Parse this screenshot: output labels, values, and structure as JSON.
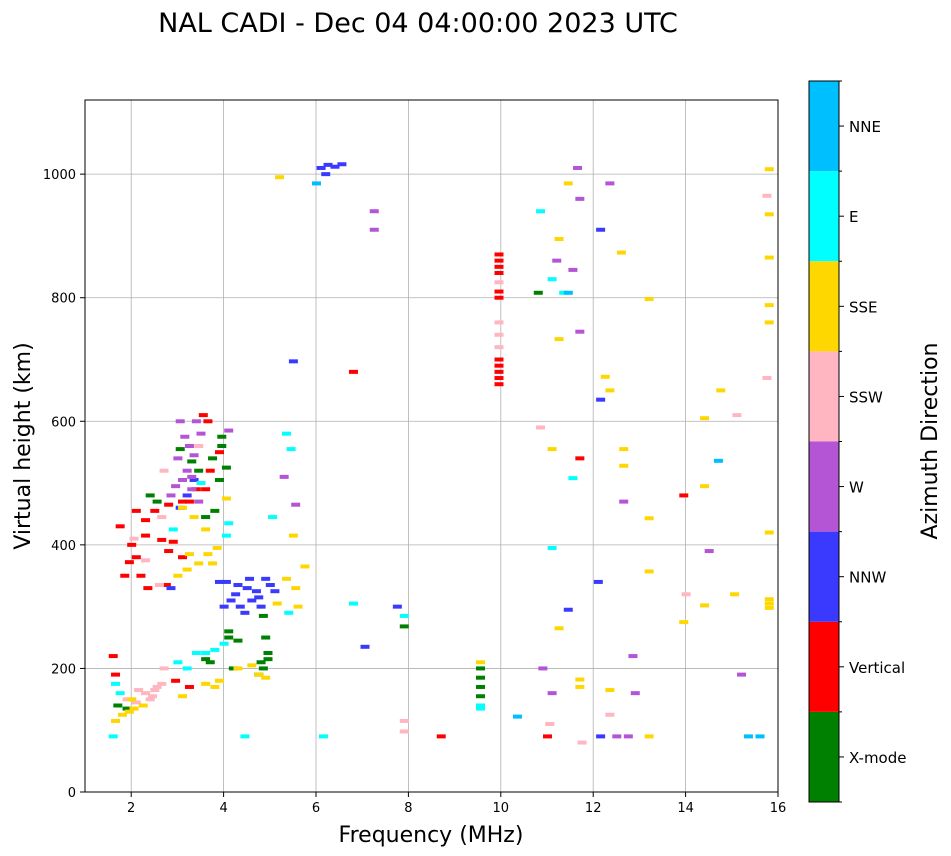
{
  "chart_data": {
    "type": "scatter",
    "title": "NAL CADI - Dec 04 04:00:00 2023 UTC",
    "xlabel": "Frequency (MHz)",
    "ylabel": "Virtual height (km)",
    "xlim": [
      1,
      16
    ],
    "ylim": [
      0,
      1120
    ],
    "xticks": [
      2,
      4,
      6,
      8,
      10,
      12,
      14,
      16
    ],
    "yticks": [
      0,
      200,
      400,
      600,
      800,
      1000
    ],
    "grid": true,
    "colorbar": {
      "label": "Azimuth Direction",
      "categories": [
        {
          "name": "X-mode",
          "color": "#008000"
        },
        {
          "name": "Vertical",
          "color": "#ff0000"
        },
        {
          "name": "NNW",
          "color": "#3a3aff"
        },
        {
          "name": "W",
          "color": "#b455d6"
        },
        {
          "name": "SSW",
          "color": "#ffb6c1"
        },
        {
          "name": "SSE",
          "color": "#ffd700"
        },
        {
          "name": "E",
          "color": "#00ffff"
        },
        {
          "name": "NNE",
          "color": "#00bfff"
        }
      ]
    },
    "series": [
      {
        "name": "X-mode",
        "points": [
          [
            9.55,
            200
          ],
          [
            9.55,
            185
          ],
          [
            9.55,
            170
          ],
          [
            9.55,
            155
          ],
          [
            4.1,
            260
          ],
          [
            4.1,
            250
          ],
          [
            4.3,
            245
          ],
          [
            4.9,
            250
          ],
          [
            4.95,
            225
          ],
          [
            4.95,
            215
          ],
          [
            4.85,
            200
          ],
          [
            4.75,
            190
          ],
          [
            4.2,
            200
          ],
          [
            3.7,
            210
          ],
          [
            3.6,
            215
          ],
          [
            3.45,
            520
          ],
          [
            3.75,
            540
          ],
          [
            4.05,
            525
          ],
          [
            3.9,
            505
          ],
          [
            10.8,
            808
          ],
          [
            7.9,
            268
          ],
          [
            4.85,
            285
          ],
          [
            3.05,
            555
          ],
          [
            3.3,
            535
          ],
          [
            3.6,
            445
          ],
          [
            3.8,
            455
          ],
          [
            2.4,
            480
          ],
          [
            2.55,
            470
          ],
          [
            1.7,
            140
          ],
          [
            1.9,
            135
          ],
          [
            3.95,
            575
          ],
          [
            3.95,
            560
          ],
          [
            4.8,
            210
          ]
        ]
      },
      {
        "name": "Vertical",
        "points": [
          [
            9.95,
            870
          ],
          [
            9.95,
            860
          ],
          [
            9.95,
            850
          ],
          [
            9.95,
            840
          ],
          [
            9.95,
            810
          ],
          [
            9.95,
            800
          ],
          [
            9.95,
            700
          ],
          [
            9.95,
            690
          ],
          [
            9.95,
            680
          ],
          [
            9.95,
            670
          ],
          [
            9.95,
            660
          ],
          [
            8.7,
            90
          ],
          [
            11.0,
            90
          ],
          [
            13.95,
            480
          ],
          [
            11.7,
            540
          ],
          [
            6.8,
            680
          ],
          [
            2.35,
            330
          ],
          [
            2.2,
            350
          ],
          [
            2.1,
            380
          ],
          [
            2.0,
            400
          ],
          [
            2.3,
            440
          ],
          [
            2.5,
            455
          ],
          [
            2.8,
            465
          ],
          [
            3.1,
            470
          ],
          [
            3.4,
            490
          ],
          [
            3.6,
            490
          ],
          [
            3.7,
            520
          ],
          [
            3.25,
            470
          ],
          [
            3.9,
            550
          ],
          [
            2.8,
            390
          ],
          [
            3.1,
            380
          ],
          [
            1.65,
            190
          ],
          [
            1.6,
            220
          ],
          [
            1.85,
            350
          ],
          [
            2.95,
            180
          ],
          [
            3.25,
            170
          ],
          [
            2.9,
            405
          ],
          [
            2.65,
            408
          ],
          [
            2.3,
            415
          ],
          [
            3.55,
            610
          ],
          [
            3.65,
            600
          ],
          [
            1.75,
            430
          ],
          [
            2.1,
            455
          ],
          [
            1.95,
            372
          ],
          [
            2.75,
            335
          ]
        ]
      },
      {
        "name": "NNW",
        "points": [
          [
            6.1,
            1010
          ],
          [
            6.25,
            1015
          ],
          [
            6.4,
            1012
          ],
          [
            6.55,
            1016
          ],
          [
            6.2,
            1000
          ],
          [
            4.05,
            340
          ],
          [
            4.3,
            335
          ],
          [
            4.5,
            330
          ],
          [
            4.7,
            325
          ],
          [
            4.15,
            310
          ],
          [
            4.35,
            300
          ],
          [
            4.6,
            310
          ],
          [
            4.25,
            320
          ],
          [
            4.0,
            300
          ],
          [
            4.55,
            345
          ],
          [
            4.9,
            345
          ],
          [
            5.1,
            325
          ],
          [
            4.8,
            300
          ],
          [
            3.9,
            340
          ],
          [
            5.0,
            335
          ],
          [
            12.1,
            340
          ],
          [
            11.45,
            295
          ],
          [
            12.15,
            635
          ],
          [
            12.15,
            910
          ],
          [
            12.15,
            90
          ],
          [
            7.05,
            235
          ],
          [
            7.75,
            300
          ],
          [
            2.85,
            330
          ],
          [
            3.05,
            460
          ],
          [
            3.35,
            505
          ],
          [
            3.2,
            480
          ],
          [
            5.5,
            697
          ],
          [
            4.45,
            290
          ],
          [
            4.75,
            315
          ]
        ]
      },
      {
        "name": "W",
        "points": [
          [
            3.05,
            600
          ],
          [
            3.15,
            575
          ],
          [
            3.25,
            560
          ],
          [
            3.0,
            540
          ],
          [
            3.2,
            520
          ],
          [
            3.35,
            545
          ],
          [
            3.1,
            505
          ],
          [
            2.95,
            495
          ],
          [
            3.3,
            490
          ],
          [
            3.45,
            470
          ],
          [
            2.85,
            480
          ],
          [
            3.5,
            580
          ],
          [
            3.4,
            600
          ],
          [
            4.1,
            585
          ],
          [
            3.3,
            510
          ],
          [
            11.7,
            960
          ],
          [
            11.65,
            1010
          ],
          [
            12.35,
            985
          ],
          [
            11.2,
            860
          ],
          [
            11.55,
            845
          ],
          [
            11.7,
            745
          ],
          [
            12.85,
            220
          ],
          [
            12.5,
            90
          ],
          [
            12.75,
            90
          ],
          [
            12.9,
            160
          ],
          [
            15.2,
            190
          ],
          [
            11.1,
            160
          ],
          [
            10.9,
            200
          ],
          [
            12.65,
            470
          ],
          [
            14.5,
            390
          ],
          [
            7.25,
            940
          ],
          [
            7.25,
            910
          ],
          [
            5.55,
            465
          ],
          [
            5.3,
            510
          ]
        ]
      },
      {
        "name": "SSW",
        "points": [
          [
            2.3,
            160
          ],
          [
            2.5,
            165
          ],
          [
            2.4,
            150
          ],
          [
            2.65,
            175
          ],
          [
            2.55,
            170
          ],
          [
            2.1,
            145
          ],
          [
            1.9,
            150
          ],
          [
            2.7,
            200
          ],
          [
            2.45,
            155
          ],
          [
            2.15,
            165
          ],
          [
            9.95,
            760
          ],
          [
            9.95,
            740
          ],
          [
            9.95,
            720
          ],
          [
            9.95,
            825
          ],
          [
            10.85,
            590
          ],
          [
            15.1,
            610
          ],
          [
            15.75,
            965
          ],
          [
            15.75,
            670
          ],
          [
            14.0,
            320
          ],
          [
            12.35,
            125
          ],
          [
            11.05,
            110
          ],
          [
            11.75,
            80
          ],
          [
            7.9,
            115
          ],
          [
            7.9,
            98
          ],
          [
            2.6,
            335
          ],
          [
            2.3,
            375
          ],
          [
            2.05,
            410
          ],
          [
            2.65,
            445
          ],
          [
            2.7,
            520
          ],
          [
            3.45,
            560
          ]
        ]
      },
      {
        "name": "SSE",
        "points": [
          [
            9.55,
            210
          ],
          [
            1.65,
            115
          ],
          [
            1.8,
            125
          ],
          [
            1.95,
            130
          ],
          [
            2.05,
            135
          ],
          [
            2.25,
            140
          ],
          [
            2.0,
            150
          ],
          [
            3.6,
            175
          ],
          [
            3.8,
            170
          ],
          [
            3.9,
            180
          ],
          [
            3.1,
            155
          ],
          [
            3.0,
            350
          ],
          [
            3.2,
            360
          ],
          [
            3.45,
            370
          ],
          [
            3.65,
            385
          ],
          [
            3.85,
            395
          ],
          [
            3.75,
            370
          ],
          [
            3.25,
            385
          ],
          [
            3.35,
            445
          ],
          [
            3.6,
            425
          ],
          [
            4.3,
            200
          ],
          [
            4.6,
            205
          ],
          [
            4.75,
            190
          ],
          [
            4.9,
            185
          ],
          [
            5.15,
            305
          ],
          [
            5.6,
            300
          ],
          [
            5.35,
            345
          ],
          [
            5.55,
            330
          ],
          [
            5.5,
            415
          ],
          [
            5.75,
            365
          ],
          [
            11.45,
            985
          ],
          [
            11.25,
            895
          ],
          [
            12.6,
            873
          ],
          [
            13.2,
            798
          ],
          [
            11.25,
            733
          ],
          [
            12.35,
            650
          ],
          [
            12.25,
            672
          ],
          [
            12.65,
            555
          ],
          [
            12.65,
            528
          ],
          [
            13.2,
            443
          ],
          [
            13.2,
            357
          ],
          [
            14.4,
            495
          ],
          [
            14.4,
            605
          ],
          [
            14.75,
            650
          ],
          [
            15.05,
            320
          ],
          [
            14.4,
            302
          ],
          [
            13.95,
            275
          ],
          [
            11.7,
            182
          ],
          [
            11.7,
            170
          ],
          [
            12.35,
            165
          ],
          [
            13.2,
            90
          ],
          [
            15.8,
            1008
          ],
          [
            15.8,
            935
          ],
          [
            15.8,
            865
          ],
          [
            15.8,
            788
          ],
          [
            15.8,
            760
          ],
          [
            15.8,
            420
          ],
          [
            15.8,
            312
          ],
          [
            15.8,
            305
          ],
          [
            15.8,
            298
          ],
          [
            11.25,
            265
          ],
          [
            11.1,
            555
          ],
          [
            5.2,
            995
          ],
          [
            4.05,
            475
          ],
          [
            3.1,
            460
          ]
        ]
      },
      {
        "name": "E",
        "points": [
          [
            9.55,
            140
          ],
          [
            9.55,
            135
          ],
          [
            3.4,
            225
          ],
          [
            3.6,
            225
          ],
          [
            3.8,
            230
          ],
          [
            4.0,
            240
          ],
          [
            3.0,
            210
          ],
          [
            3.2,
            200
          ],
          [
            4.1,
            435
          ],
          [
            4.05,
            415
          ],
          [
            1.65,
            175
          ],
          [
            1.75,
            160
          ],
          [
            11.55,
            508
          ],
          [
            10.85,
            940
          ],
          [
            11.1,
            830
          ],
          [
            11.35,
            808
          ],
          [
            11.1,
            395
          ],
          [
            6.15,
            90
          ],
          [
            4.45,
            90
          ],
          [
            1.6,
            90
          ],
          [
            6.8,
            305
          ],
          [
            5.4,
            290
          ],
          [
            5.35,
            580
          ],
          [
            5.45,
            555
          ],
          [
            7.9,
            285
          ],
          [
            3.5,
            500
          ],
          [
            2.9,
            425
          ],
          [
            5.05,
            445
          ]
        ]
      },
      {
        "name": "NNE",
        "points": [
          [
            10.35,
            122
          ],
          [
            15.35,
            90
          ],
          [
            15.6,
            90
          ],
          [
            6.0,
            985
          ],
          [
            14.7,
            536
          ],
          [
            11.45,
            808
          ]
        ]
      }
    ]
  }
}
